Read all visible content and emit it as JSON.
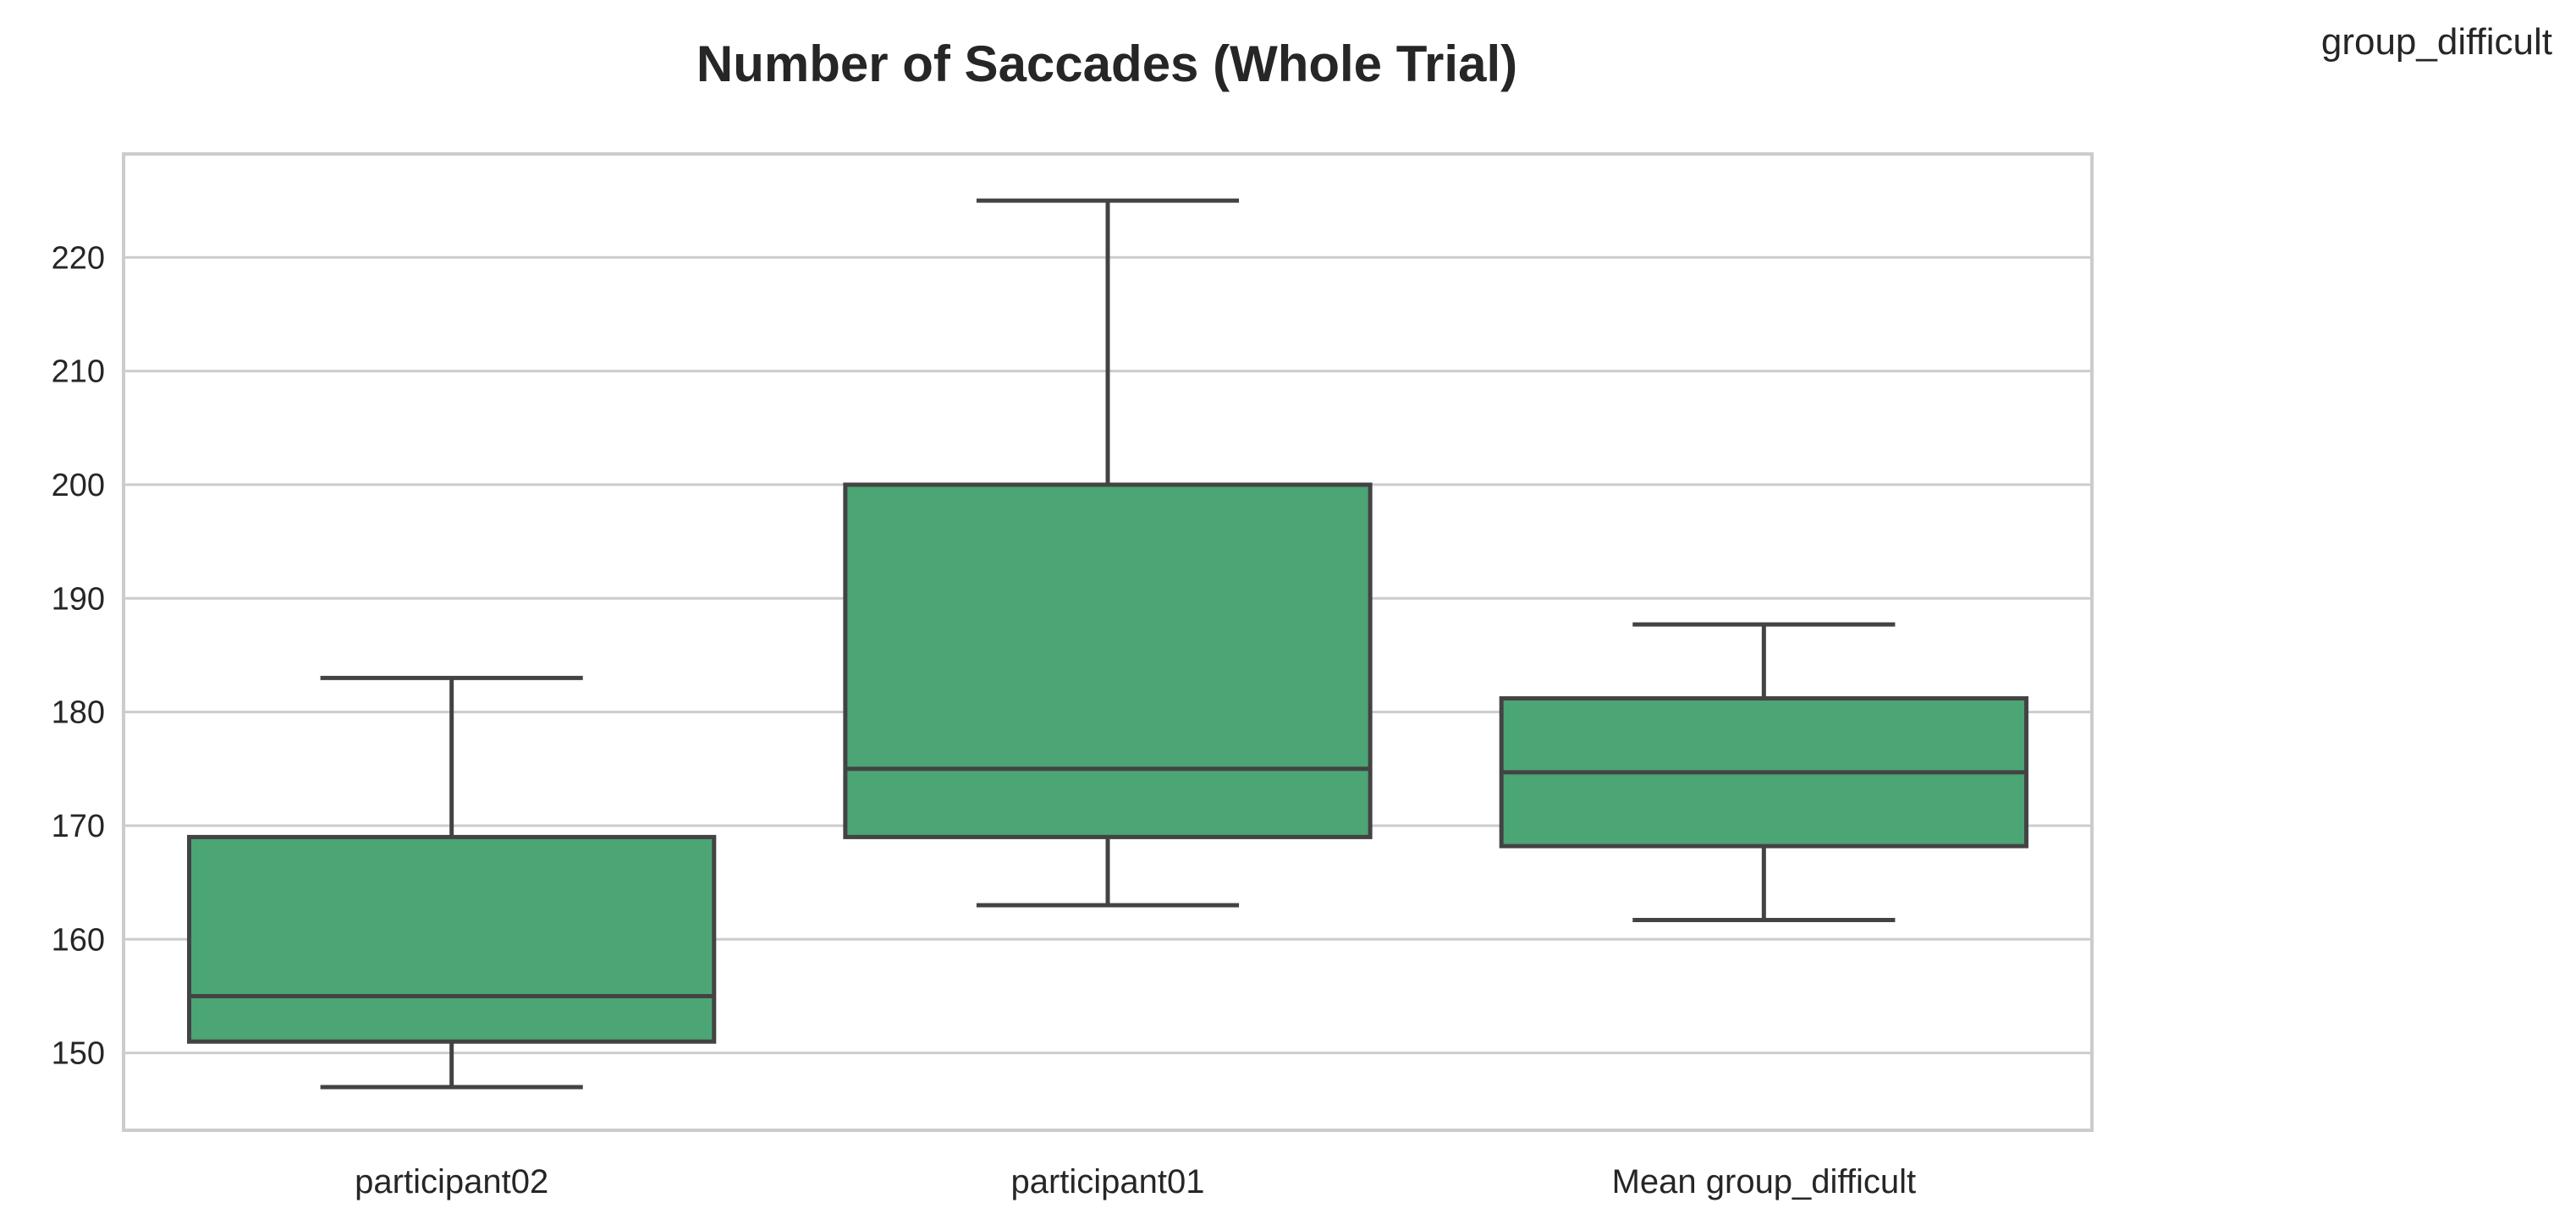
{
  "corner_label": "group_difficult",
  "chart_data": {
    "type": "box",
    "title": "Number of Saccades (Whole Trial)",
    "xlabel": "",
    "ylabel": "",
    "ylim": [
      143.2,
      229.1
    ],
    "yticks": [
      150,
      160,
      170,
      180,
      190,
      200,
      210,
      220
    ],
    "grid": true,
    "box_color": "#4ca574",
    "line_color": "#434343",
    "categories": [
      "participant02",
      "participant01",
      "Mean group_difficult"
    ],
    "boxes": [
      {
        "name": "participant02",
        "whisker_low": 147,
        "q1": 151,
        "median": 155,
        "q3": 169,
        "whisker_high": 183
      },
      {
        "name": "participant01",
        "whisker_low": 163,
        "q1": 169,
        "median": 175,
        "q3": 200,
        "whisker_high": 225
      },
      {
        "name": "Mean group_difficult",
        "whisker_low": 161.7,
        "q1": 168.2,
        "median": 174.7,
        "q3": 181.2,
        "whisker_high": 187.7
      }
    ]
  }
}
